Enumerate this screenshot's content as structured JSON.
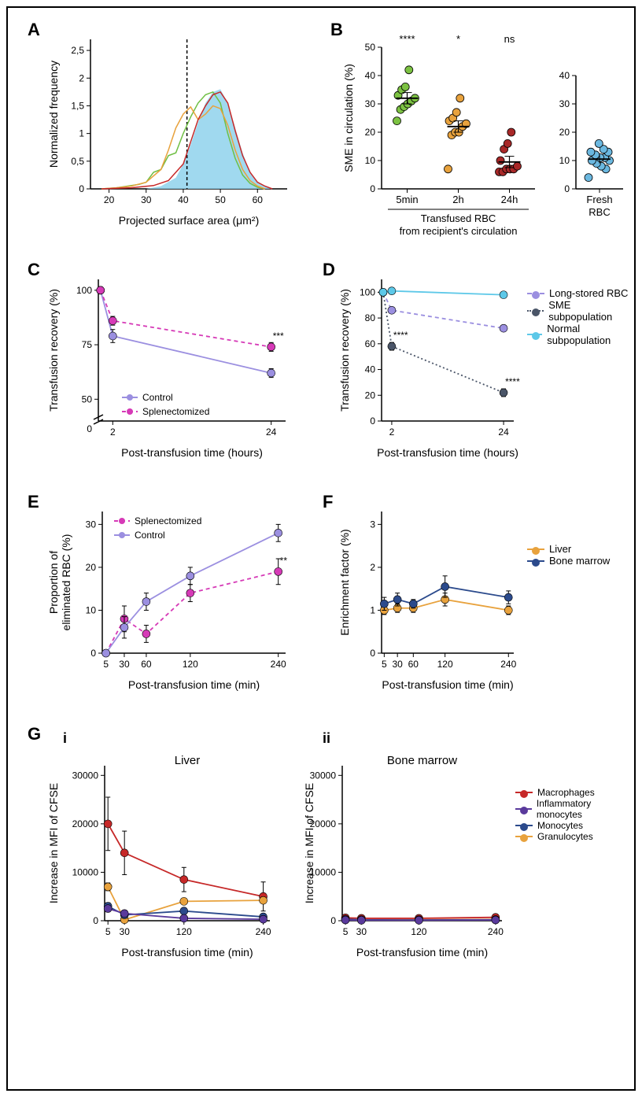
{
  "panelA": {
    "label": "A",
    "xlabel": "Projected surface area (μm²)",
    "ylabel": "Normalized frequency",
    "xlim": [
      15,
      68
    ],
    "xtick": [
      20,
      30,
      40,
      50,
      60
    ],
    "ylim": [
      0,
      2.7
    ],
    "ytick": [
      0,
      "0,5",
      1,
      "1,5",
      2,
      "2,5"
    ],
    "vline_x": 41,
    "fill_color": "#8fd2ec",
    "curves": [
      {
        "color": "#6fbf44",
        "width": 1.5,
        "x": [
          18,
          22,
          25,
          28,
          30,
          32,
          34,
          36,
          38,
          40,
          42,
          44,
          46,
          48,
          50,
          52,
          54,
          56,
          58,
          60,
          62
        ],
        "y": [
          0,
          0.02,
          0.05,
          0.08,
          0.12,
          0.3,
          0.35,
          0.6,
          0.65,
          1.0,
          1.3,
          1.55,
          1.7,
          1.75,
          1.55,
          1.0,
          0.55,
          0.25,
          0.1,
          0.03,
          0
        ]
      },
      {
        "color": "#e8a23d",
        "width": 1.5,
        "x": [
          18,
          22,
          26,
          30,
          34,
          36,
          38,
          40,
          42,
          44,
          46,
          48,
          50,
          52,
          54,
          56,
          58,
          60,
          62
        ],
        "y": [
          0,
          0.02,
          0.05,
          0.12,
          0.35,
          0.7,
          1.1,
          1.35,
          1.48,
          1.25,
          1.35,
          1.5,
          1.45,
          1.15,
          0.7,
          0.35,
          0.15,
          0.05,
          0
        ]
      },
      {
        "color": "#c62828",
        "width": 1.5,
        "x": [
          18,
          26,
          32,
          36,
          40,
          42,
          44,
          46,
          48,
          50,
          52,
          54,
          56,
          58,
          60,
          62,
          64
        ],
        "y": [
          0,
          0.02,
          0.06,
          0.15,
          0.45,
          0.85,
          1.25,
          1.5,
          1.7,
          1.75,
          1.55,
          1.05,
          0.6,
          0.3,
          0.12,
          0.05,
          0
        ]
      }
    ],
    "fill_curve": {
      "x": [
        30,
        34,
        38,
        40,
        42,
        44,
        46,
        48,
        50,
        52,
        54,
        56,
        58,
        60,
        62,
        64
      ],
      "y": [
        0,
        0.05,
        0.2,
        0.45,
        0.8,
        1.2,
        1.55,
        1.75,
        1.8,
        1.55,
        1.1,
        0.65,
        0.3,
        0.12,
        0.04,
        0
      ]
    }
  },
  "panelB": {
    "label": "B",
    "ylabel": "SME in circulation (%)",
    "ylim": [
      0,
      50
    ],
    "ytick": [
      0,
      10,
      20,
      30,
      40,
      50
    ],
    "groups": [
      {
        "label": "5min",
        "mean": 32,
        "sig": "****",
        "color": "#7cc242",
        "points": [
          24,
          28,
          29,
          30,
          31,
          32,
          33,
          35,
          36,
          42
        ]
      },
      {
        "label": "2h",
        "mean": 22,
        "sig": "*",
        "color": "#e8a23d",
        "points": [
          7,
          19,
          20,
          20,
          22,
          23,
          24,
          25,
          27,
          32
        ]
      },
      {
        "label": "24h",
        "mean": 9.5,
        "sig": "ns",
        "color": "#a82828",
        "points": [
          6,
          6,
          7,
          7,
          7,
          8,
          10,
          14,
          16,
          20
        ]
      }
    ],
    "xgroup_label": "Transfused RBC\nfrom recipient's circulation",
    "fresh": {
      "label": "Fresh\nRBC",
      "mean": 10.5,
      "color": "#6bb8e0",
      "points": [
        4,
        7,
        8,
        9,
        10,
        10,
        11,
        11,
        12,
        13,
        13,
        14,
        16
      ],
      "ylim": [
        0,
        40
      ],
      "ytick": [
        0,
        10,
        20,
        30,
        40
      ]
    }
  },
  "panelC": {
    "label": "C",
    "xlabel": "Post-transfusion time (hours)",
    "ylabel": "Transfusion recovery (%)",
    "xlim": [
      0,
      26
    ],
    "xtick": [
      2,
      24
    ],
    "ylim": [
      40,
      105
    ],
    "ytick": [
      50,
      75,
      100
    ],
    "break": true,
    "series": [
      {
        "name": "Control",
        "color": "#9b8fe0",
        "dash": "none",
        "x": [
          0.3,
          2,
          24
        ],
        "y": [
          100,
          79,
          62
        ],
        "err": [
          0,
          3,
          2
        ]
      },
      {
        "name": "Splenectomized",
        "color": "#d63ab7",
        "dash": "5,4",
        "x": [
          0.3,
          2,
          24
        ],
        "y": [
          100,
          86,
          74
        ],
        "err": [
          0,
          2,
          2
        ],
        "sig24": "***"
      }
    ]
  },
  "panelD": {
    "label": "D",
    "xlabel": "Post-transfusion time (hours)",
    "ylabel": "Transfusion recovery (%)",
    "xlim": [
      0,
      26
    ],
    "xtick": [
      2,
      24
    ],
    "ylim": [
      0,
      110
    ],
    "ytick": [
      0,
      20,
      40,
      60,
      80,
      100
    ],
    "series": [
      {
        "name": "Long-stored RBC",
        "color": "#9b8fe0",
        "dash": "5,4",
        "x": [
          0.3,
          2,
          24
        ],
        "y": [
          100,
          86,
          72
        ],
        "err": [
          0,
          2,
          2
        ]
      },
      {
        "name": "SME subpopulation",
        "color": "#4a5568",
        "dash": "2,3",
        "x": [
          0.3,
          2,
          24
        ],
        "y": [
          100,
          58,
          22
        ],
        "err": [
          0,
          3,
          3
        ],
        "sig2": "****",
        "sig24": "****"
      },
      {
        "name": "Normal subpopulation",
        "color": "#5dc8e8",
        "dash": "none",
        "x": [
          0.3,
          2,
          24
        ],
        "y": [
          100,
          101,
          98
        ],
        "err": [
          0,
          2,
          2
        ]
      }
    ]
  },
  "panelE": {
    "label": "E",
    "xlabel": "Post-transfusion time (min)",
    "ylabel": "Proportion of\neliminated RBC (%)",
    "xlim": [
      0,
      250
    ],
    "xtick": [
      5,
      30,
      60,
      120,
      240
    ],
    "ylim": [
      0,
      33
    ],
    "ytick": [
      0,
      10,
      20,
      30
    ],
    "series": [
      {
        "name": "Splenectomized",
        "color": "#d63ab7",
        "dash": "5,4",
        "x": [
          5,
          30,
          60,
          120,
          240
        ],
        "y": [
          0,
          8,
          4.5,
          14,
          19
        ],
        "err": [
          0,
          3,
          2,
          2,
          3
        ],
        "sig240": "**"
      },
      {
        "name": "Control",
        "color": "#9b8fe0",
        "dash": "none",
        "x": [
          5,
          30,
          60,
          120,
          240
        ],
        "y": [
          0,
          6,
          12,
          18,
          28
        ],
        "err": [
          0,
          2.5,
          2,
          2,
          2
        ]
      }
    ]
  },
  "panelF": {
    "label": "F",
    "xlabel": "Post-transfusion time (min)",
    "ylabel": "Enrichment factor (%)",
    "xlim": [
      0,
      250
    ],
    "xtick": [
      5,
      30,
      60,
      120,
      240
    ],
    "ylim": [
      0,
      3.3
    ],
    "ytick": [
      0,
      1,
      2,
      3
    ],
    "series": [
      {
        "name": "Liver",
        "color": "#e8a23d",
        "x": [
          5,
          30,
          60,
          120,
          240
        ],
        "y": [
          1.0,
          1.05,
          1.05,
          1.25,
          1.0
        ],
        "err": [
          0.1,
          0.1,
          0.1,
          0.15,
          0.1
        ]
      },
      {
        "name": "Bone marrow",
        "color": "#2b4a8c",
        "x": [
          5,
          30,
          60,
          120,
          240
        ],
        "y": [
          1.15,
          1.25,
          1.15,
          1.55,
          1.3
        ],
        "err": [
          0.15,
          0.15,
          0.1,
          0.25,
          0.15
        ]
      }
    ]
  },
  "panelG": {
    "label": "G",
    "i_label": "i",
    "ii_label": "ii",
    "i_title": "Liver",
    "ii_title": "Bone marrow",
    "xlabel": "Post-transfusion time (min)",
    "ylabel": "Increase in MFI of CFSE",
    "xlim": [
      0,
      250
    ],
    "xtick": [
      5,
      30,
      120,
      240
    ],
    "ylim": [
      0,
      32000
    ],
    "ytick": [
      0,
      10000,
      20000,
      30000
    ],
    "legend": [
      {
        "name": "Macrophages",
        "color": "#c62828"
      },
      {
        "name": "Inflammatory monocytes",
        "color": "#5a3a9c"
      },
      {
        "name": "Monocytes",
        "color": "#2b4a8c"
      },
      {
        "name": "Granulocytes",
        "color": "#e8a23d"
      }
    ],
    "liver": [
      {
        "color": "#c62828",
        "x": [
          5,
          30,
          120,
          240
        ],
        "y": [
          20000,
          14000,
          8500,
          5000
        ],
        "err": [
          5500,
          4500,
          2500,
          3000
        ]
      },
      {
        "color": "#e8a23d",
        "x": [
          5,
          30,
          120,
          240
        ],
        "y": [
          7000,
          200,
          4000,
          4200
        ],
        "err": [
          800,
          200,
          600,
          500
        ]
      },
      {
        "color": "#2b4a8c",
        "x": [
          5,
          30,
          120,
          240
        ],
        "y": [
          3000,
          1200,
          2000,
          800
        ],
        "err": [
          700,
          400,
          500,
          300
        ]
      },
      {
        "color": "#5a3a9c",
        "x": [
          5,
          30,
          120,
          240
        ],
        "y": [
          2500,
          1500,
          500,
          300
        ],
        "err": [
          600,
          400,
          300,
          200
        ]
      }
    ],
    "bone_marrow": [
      {
        "color": "#c62828",
        "x": [
          5,
          30,
          120,
          240
        ],
        "y": [
          600,
          500,
          500,
          700
        ],
        "err": [
          200,
          200,
          200,
          200
        ]
      },
      {
        "color": "#e8a23d",
        "x": [
          5,
          30,
          120,
          240
        ],
        "y": [
          200,
          150,
          200,
          250
        ],
        "err": [
          100,
          80,
          100,
          100
        ]
      },
      {
        "color": "#2b4a8c",
        "x": [
          5,
          30,
          120,
          240
        ],
        "y": [
          300,
          200,
          150,
          200
        ],
        "err": [
          100,
          80,
          80,
          100
        ]
      },
      {
        "color": "#5a3a9c",
        "x": [
          5,
          30,
          120,
          240
        ],
        "y": [
          150,
          100,
          100,
          150
        ],
        "err": [
          80,
          60,
          60,
          80
        ]
      }
    ]
  }
}
